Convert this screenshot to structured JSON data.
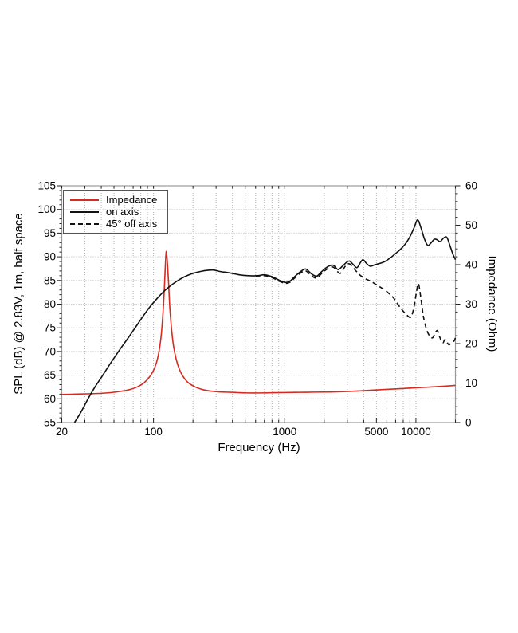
{
  "figure": {
    "background": "#ffffff",
    "grid_color": "#b3b3b3",
    "frame_color": "#999999",
    "tick_color": "#222222"
  },
  "legend": {
    "items": [
      {
        "label": "Impedance",
        "line": "solid",
        "color": "#d62b20"
      },
      {
        "label": "on axis",
        "line": "solid",
        "color": "#111111"
      },
      {
        "label": "45° off axis",
        "line": "dashed",
        "color": "#111111"
      }
    ]
  },
  "chart_data": {
    "type": "line",
    "title": "",
    "grid": "dotted minor log verticals, 5 dB horizontals",
    "legend_position": "upper-left",
    "x_axis": {
      "label": "Frequency (Hz)",
      "scale": "log",
      "min": 20,
      "max": 20000,
      "tick_labels": [
        "20",
        "100",
        "1000",
        "5000",
        "10000"
      ],
      "tick_values": [
        20,
        100,
        1000,
        5000,
        10000
      ]
    },
    "y_left_axis": {
      "label": "SPL (dB) @ 2.83V, 1m, half space",
      "min": 55,
      "max": 105,
      "ticks": [
        55,
        60,
        65,
        70,
        75,
        80,
        85,
        90,
        95,
        100,
        105
      ]
    },
    "y_right_axis": {
      "label": "Impedance (Ohm)",
      "min": 0,
      "max": 60,
      "ticks": [
        0,
        10,
        20,
        30,
        40,
        50,
        60
      ]
    },
    "series": [
      {
        "name": "Impedance",
        "axis": "right",
        "unit": "Ohm",
        "style": "solid",
        "color": "#d62b20",
        "points": [
          [
            20,
            7.1
          ],
          [
            26,
            7.2
          ],
          [
            33,
            7.3
          ],
          [
            40,
            7.4
          ],
          [
            48,
            7.6
          ],
          [
            56,
            7.9
          ],
          [
            65,
            8.3
          ],
          [
            75,
            9.0
          ],
          [
            85,
            10.1
          ],
          [
            95,
            11.9
          ],
          [
            103,
            14.2
          ],
          [
            109,
            17.2
          ],
          [
            114,
            21.5
          ],
          [
            118,
            27.5
          ],
          [
            121,
            34.0
          ],
          [
            123,
            39.5
          ],
          [
            125,
            43.3
          ],
          [
            127,
            41.5
          ],
          [
            130,
            36.0
          ],
          [
            133,
            29.5
          ],
          [
            137,
            24.0
          ],
          [
            142,
            19.5
          ],
          [
            149,
            16.0
          ],
          [
            157,
            13.6
          ],
          [
            167,
            11.8
          ],
          [
            180,
            10.4
          ],
          [
            195,
            9.5
          ],
          [
            215,
            8.8
          ],
          [
            240,
            8.3
          ],
          [
            270,
            8.0
          ],
          [
            310,
            7.8
          ],
          [
            360,
            7.7
          ],
          [
            430,
            7.6
          ],
          [
            520,
            7.5
          ],
          [
            650,
            7.5
          ],
          [
            800,
            7.55
          ],
          [
            1000,
            7.6
          ],
          [
            1300,
            7.65
          ],
          [
            1700,
            7.7
          ],
          [
            2200,
            7.75
          ],
          [
            2800,
            7.85
          ],
          [
            3600,
            8.0
          ],
          [
            4600,
            8.2
          ],
          [
            6000,
            8.4
          ],
          [
            7800,
            8.6
          ],
          [
            10000,
            8.8
          ],
          [
            13000,
            9.0
          ],
          [
            16500,
            9.2
          ],
          [
            20000,
            9.4
          ]
        ]
      },
      {
        "name": "on axis",
        "axis": "left",
        "unit": "dB",
        "style": "solid",
        "color": "#111111",
        "points": [
          [
            25,
            55.0
          ],
          [
            28,
            57.2
          ],
          [
            32,
            60.2
          ],
          [
            36,
            62.6
          ],
          [
            40,
            64.5
          ],
          [
            45,
            66.7
          ],
          [
            50,
            68.6
          ],
          [
            57,
            70.9
          ],
          [
            65,
            73.1
          ],
          [
            75,
            75.6
          ],
          [
            85,
            77.8
          ],
          [
            95,
            79.6
          ],
          [
            105,
            81.0
          ],
          [
            120,
            82.7
          ],
          [
            135,
            83.9
          ],
          [
            150,
            84.8
          ],
          [
            170,
            85.7
          ],
          [
            195,
            86.4
          ],
          [
            220,
            86.8
          ],
          [
            250,
            87.1
          ],
          [
            285,
            87.2
          ],
          [
            320,
            86.9
          ],
          [
            380,
            86.6
          ],
          [
            450,
            86.2
          ],
          [
            530,
            86.0
          ],
          [
            620,
            86.0
          ],
          [
            700,
            86.2
          ],
          [
            800,
            85.8
          ],
          [
            900,
            85.1
          ],
          [
            1000,
            84.6
          ],
          [
            1090,
            84.8
          ],
          [
            1200,
            85.9
          ],
          [
            1340,
            87.0
          ],
          [
            1450,
            87.4
          ],
          [
            1600,
            86.4
          ],
          [
            1750,
            85.9
          ],
          [
            1900,
            86.8
          ],
          [
            2050,
            87.6
          ],
          [
            2200,
            88.1
          ],
          [
            2350,
            88.2
          ],
          [
            2550,
            87.3
          ],
          [
            2750,
            88.0
          ],
          [
            2950,
            88.8
          ],
          [
            3120,
            89.1
          ],
          [
            3320,
            88.4
          ],
          [
            3550,
            87.7
          ],
          [
            3760,
            88.7
          ],
          [
            3950,
            89.4
          ],
          [
            4200,
            88.6
          ],
          [
            4500,
            88.0
          ],
          [
            4850,
            88.3
          ],
          [
            5300,
            88.6
          ],
          [
            5800,
            89.0
          ],
          [
            6400,
            89.8
          ],
          [
            7000,
            90.7
          ],
          [
            7700,
            91.7
          ],
          [
            8400,
            92.9
          ],
          [
            9100,
            94.5
          ],
          [
            9700,
            96.2
          ],
          [
            10300,
            97.8
          ],
          [
            10900,
            96.2
          ],
          [
            11600,
            93.8
          ],
          [
            12300,
            92.4
          ],
          [
            13000,
            92.9
          ],
          [
            13800,
            93.7
          ],
          [
            14500,
            93.6
          ],
          [
            15300,
            93.2
          ],
          [
            16300,
            94.0
          ],
          [
            17200,
            94.1
          ],
          [
            18200,
            92.3
          ],
          [
            19100,
            90.6
          ],
          [
            20000,
            89.4
          ]
        ]
      },
      {
        "name": "45° off axis",
        "axis": "left",
        "unit": "dB",
        "style": "dashed",
        "color": "#111111",
        "points": [
          [
            600,
            85.9
          ],
          [
            700,
            86.0
          ],
          [
            800,
            85.6
          ],
          [
            900,
            84.9
          ],
          [
            1000,
            84.4
          ],
          [
            1090,
            84.6
          ],
          [
            1200,
            85.6
          ],
          [
            1340,
            86.7
          ],
          [
            1450,
            87.0
          ],
          [
            1600,
            86.0
          ],
          [
            1750,
            85.5
          ],
          [
            1900,
            86.4
          ],
          [
            2050,
            87.2
          ],
          [
            2200,
            87.7
          ],
          [
            2350,
            87.8
          ],
          [
            2500,
            87.0
          ],
          [
            2650,
            86.5
          ],
          [
            2800,
            87.4
          ],
          [
            2950,
            88.3
          ],
          [
            3120,
            88.5
          ],
          [
            3320,
            87.7
          ],
          [
            3550,
            86.8
          ],
          [
            3800,
            86.0
          ],
          [
            4100,
            85.4
          ],
          [
            4400,
            85.0
          ],
          [
            4800,
            84.4
          ],
          [
            5200,
            83.8
          ],
          [
            5700,
            83.1
          ],
          [
            6200,
            82.3
          ],
          [
            6800,
            81.2
          ],
          [
            7400,
            79.7
          ],
          [
            8000,
            78.5
          ],
          [
            8600,
            77.6
          ],
          [
            9000,
            77.2
          ],
          [
            9300,
            77.6
          ],
          [
            9700,
            79.6
          ],
          [
            10100,
            82.6
          ],
          [
            10450,
            84.3
          ],
          [
            10900,
            81.3
          ],
          [
            11400,
            77.4
          ],
          [
            12000,
            74.8
          ],
          [
            12700,
            73.3
          ],
          [
            13400,
            72.9
          ],
          [
            14000,
            73.9
          ],
          [
            14600,
            74.4
          ],
          [
            15200,
            73.0
          ],
          [
            16000,
            71.8
          ],
          [
            16600,
            72.5
          ],
          [
            17200,
            72.0
          ],
          [
            17900,
            71.4
          ],
          [
            18700,
            72.0
          ],
          [
            19500,
            72.2
          ],
          [
            20000,
            72.9
          ]
        ]
      }
    ]
  }
}
